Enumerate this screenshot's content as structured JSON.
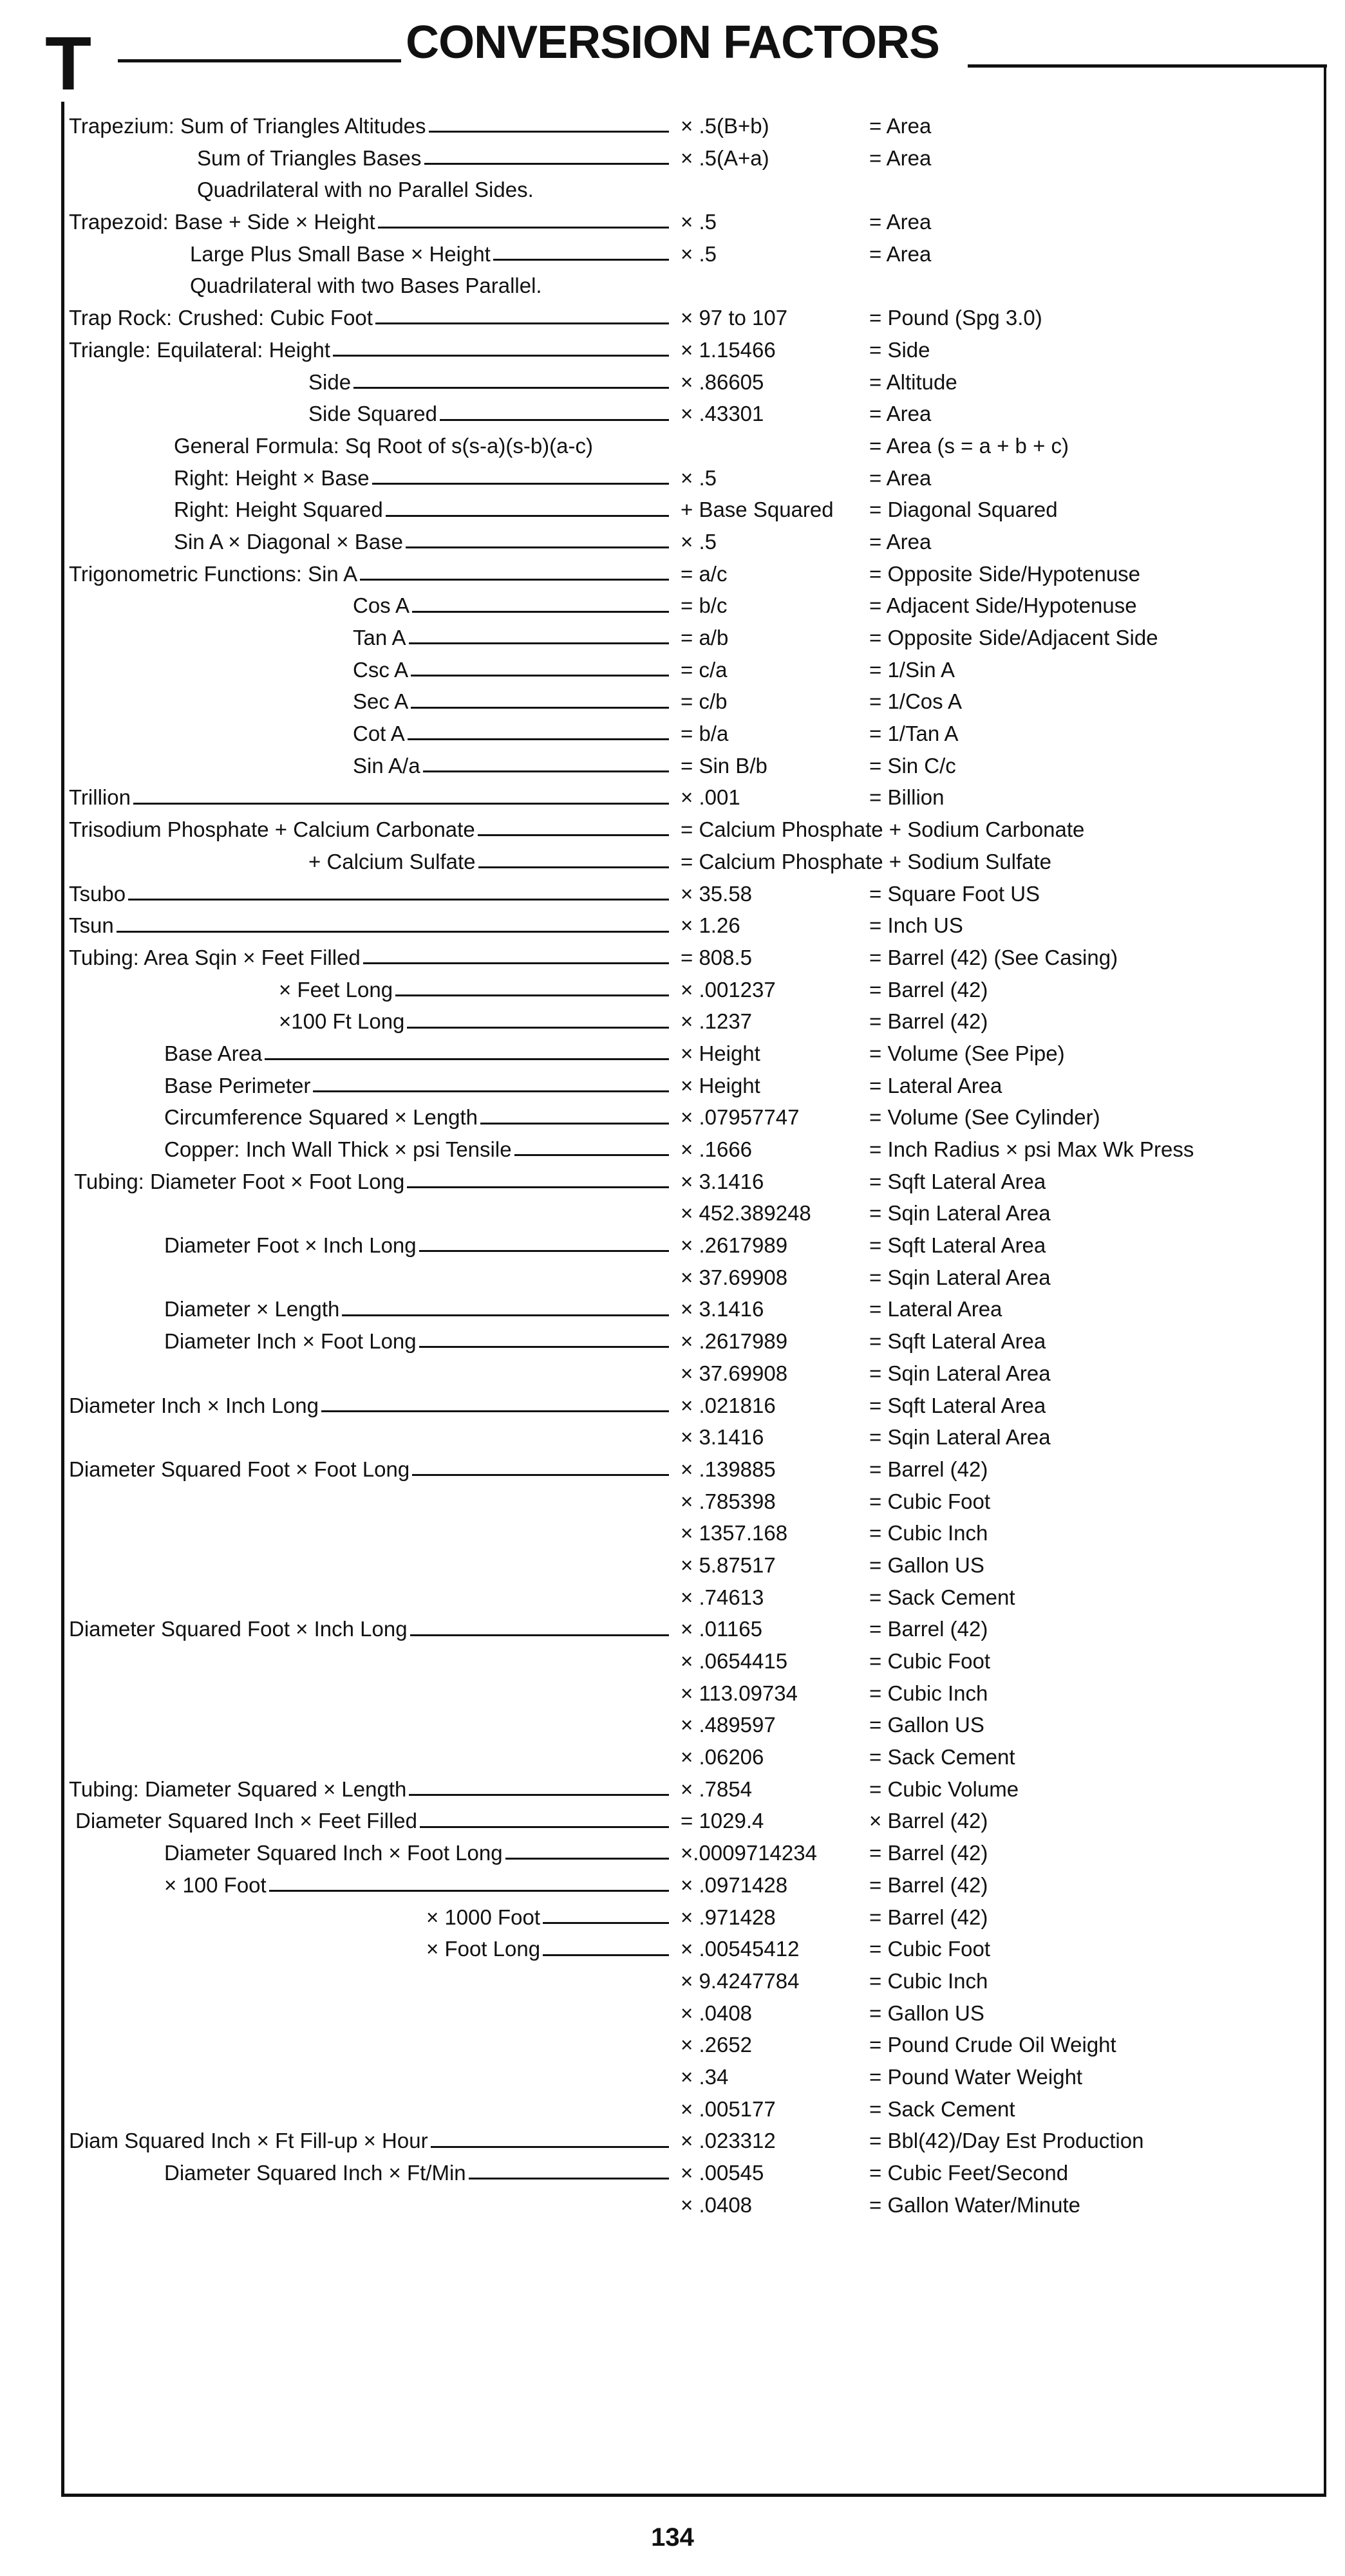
{
  "header": {
    "section_letter": "T",
    "title": "CONVERSION FACTORS"
  },
  "rows": [
    {
      "label": "Trapezium: Sum of Triangles Altitudes",
      "factor": "× .5(B+b)",
      "result": "= Area"
    },
    {
      "label": "Sum of Triangles Bases",
      "factor": "× .5(A+a)",
      "result": "= Area"
    },
    {
      "label": "Quadrilateral with no Parallel Sides.",
      "factor": "",
      "result": ""
    },
    {
      "label": "Trapezoid: Base + Side × Height",
      "factor": "× .5",
      "result": "= Area"
    },
    {
      "label": "Large Plus Small Base × Height",
      "factor": "× .5",
      "result": "= Area"
    },
    {
      "label": "Quadrilateral with two Bases Parallel.",
      "factor": "",
      "result": ""
    },
    {
      "label": "Trap Rock: Crushed: Cubic Foot",
      "factor": "× 97 to 107",
      "result": "= Pound (Spg 3.0)"
    },
    {
      "label": "Triangle: Equilateral: Height",
      "factor": "× 1.15466",
      "result": "= Side"
    },
    {
      "label": "Side",
      "factor": "× .86605",
      "result": "= Altitude"
    },
    {
      "label": "Side Squared",
      "factor": "× .43301",
      "result": "= Area"
    },
    {
      "label": "General Formula: Sq Root of s(s-a)(s-b)(a-c)",
      "factor": "",
      "result": "= Area (s = a + b + c)"
    },
    {
      "label": "Right: Height × Base",
      "factor": "× .5",
      "result": "= Area"
    },
    {
      "label": "Right: Height Squared",
      "factor": "+ Base Squared",
      "result": "= Diagonal Squared"
    },
    {
      "label": "Sin A × Diagonal × Base",
      "factor": "× .5",
      "result": "= Area"
    },
    {
      "label": "Trigonometric Functions: Sin A",
      "factor": "= a/c",
      "result": "= Opposite Side/Hypotenuse"
    },
    {
      "label": "Cos A",
      "factor": "= b/c",
      "result": "= Adjacent Side/Hypotenuse"
    },
    {
      "label": "Tan A",
      "factor": "= a/b",
      "result": "= Opposite Side/Adjacent Side"
    },
    {
      "label": "Csc A",
      "factor": "= c/a",
      "result": "= 1/Sin A"
    },
    {
      "label": "Sec A",
      "factor": "= c/b",
      "result": "= 1/Cos A"
    },
    {
      "label": "Cot A",
      "factor": "= b/a",
      "result": "= 1/Tan A"
    },
    {
      "label": "Sin A/a",
      "factor": "= Sin B/b",
      "result": "= Sin C/c"
    },
    {
      "label": "Trillion",
      "factor": "× .001",
      "result": "= Billion"
    },
    {
      "label": "Trisodium Phosphate + Calcium Carbonate",
      "factor": "= Calcium Phosphate + Sodium Carbonate",
      "result": ""
    },
    {
      "label": "+ Calcium Sulfate",
      "factor": "= Calcium Phosphate + Sodium Sulfate",
      "result": ""
    },
    {
      "label": "Tsubo",
      "factor": "× 35.58",
      "result": "= Square Foot US"
    },
    {
      "label": "Tsun",
      "factor": "× 1.26",
      "result": "= Inch US"
    },
    {
      "label": "Tubing: Area Sqin × Feet Filled",
      "factor": "= 808.5",
      "result": "= Barrel (42) (See Casing)"
    },
    {
      "label": "× Feet Long",
      "factor": "× .001237",
      "result": "= Barrel (42)"
    },
    {
      "label": "×100 Ft Long",
      "factor": "× .1237",
      "result": "= Barrel (42)"
    },
    {
      "label": "Base Area",
      "factor": "× Height",
      "result": "= Volume (See Pipe)"
    },
    {
      "label": "Base Perimeter",
      "factor": "× Height",
      "result": "= Lateral Area"
    },
    {
      "label": "Circumference Squared × Length",
      "factor": "× .07957747",
      "result": "= Volume (See Cylinder)"
    },
    {
      "label": "Copper: Inch Wall Thick × psi Tensile",
      "factor": "× .1666",
      "result": "= Inch Radius × psi Max Wk Press"
    },
    {
      "label": "Tubing: Diameter Foot × Foot Long",
      "factor": "× 3.1416",
      "result": "= Sqft Lateral Area"
    },
    {
      "label": "",
      "factor": "× 452.389248",
      "result": "= Sqin Lateral Area"
    },
    {
      "label": "Diameter Foot × Inch Long",
      "factor": "× .2617989",
      "result": "= Sqft Lateral Area"
    },
    {
      "label": "",
      "factor": "× 37.69908",
      "result": "= Sqin Lateral Area"
    },
    {
      "label": "Diameter × Length",
      "factor": "× 3.1416",
      "result": "= Lateral Area"
    },
    {
      "label": "Diameter Inch × Foot Long",
      "factor": "× .2617989",
      "result": "= Sqft Lateral Area"
    },
    {
      "label": "",
      "factor": "× 37.69908",
      "result": "= Sqin Lateral Area"
    },
    {
      "label": "Diameter Inch × Inch Long",
      "factor": "× .021816",
      "result": "= Sqft Lateral Area"
    },
    {
      "label": "",
      "factor": "× 3.1416",
      "result": "= Sqin Lateral Area"
    },
    {
      "label": "Diameter Squared Foot × Foot Long",
      "factor": "× .139885",
      "result": "= Barrel (42)"
    },
    {
      "label": "",
      "factor": "× .785398",
      "result": "= Cubic Foot"
    },
    {
      "label": "",
      "factor": "× 1357.168",
      "result": "= Cubic Inch"
    },
    {
      "label": "",
      "factor": "× 5.87517",
      "result": "= Gallon US"
    },
    {
      "label": "",
      "factor": "× .74613",
      "result": "= Sack Cement"
    },
    {
      "label": "Diameter Squared Foot × Inch Long",
      "factor": "× .01165",
      "result": "= Barrel (42)"
    },
    {
      "label": "",
      "factor": "× .0654415",
      "result": "= Cubic Foot"
    },
    {
      "label": "",
      "factor": "× 113.09734",
      "result": "= Cubic Inch"
    },
    {
      "label": "",
      "factor": "× .489597",
      "result": "= Gallon US"
    },
    {
      "label": "",
      "factor": "× .06206",
      "result": "= Sack Cement"
    },
    {
      "label": "Tubing: Diameter Squared × Length",
      "factor": "× .7854",
      "result": "= Cubic Volume"
    },
    {
      "label": "Diameter Squared Inch × Feet Filled",
      "factor": "= 1029.4",
      "result": "× Barrel (42)"
    },
    {
      "label": "Diameter Squared Inch × Foot Long",
      "factor": "×.0009714234",
      "result": "= Barrel (42)"
    },
    {
      "label": "× 100 Foot",
      "factor": "× .0971428",
      "result": "= Barrel (42)"
    },
    {
      "label": "× 1000 Foot",
      "factor": "× .971428",
      "result": "= Barrel (42)"
    },
    {
      "label": "× Foot Long",
      "factor": "× .00545412",
      "result": "= Cubic Foot"
    },
    {
      "label": "",
      "factor": "× 9.4247784",
      "result": "= Cubic Inch"
    },
    {
      "label": "",
      "factor": "× .0408",
      "result": "= Gallon US"
    },
    {
      "label": "",
      "factor": "× .2652",
      "result": "= Pound Crude Oil Weight"
    },
    {
      "label": "",
      "factor": "× .34",
      "result": "= Pound Water Weight"
    },
    {
      "label": "",
      "factor": "× .005177",
      "result": "= Sack Cement"
    },
    {
      "label": "Diam Squared Inch × Ft Fill-up × Hour",
      "factor": "× .023312",
      "result": "= Bbl(42)/Day Est Production"
    },
    {
      "label": "Diameter Squared Inch × Ft/Min",
      "factor": "× .00545",
      "result": "= Cubic Feet/Second"
    },
    {
      "label": "",
      "factor": "× .0408",
      "result": "= Gallon Water/Minute"
    }
  ],
  "footer": {
    "page_number": "134"
  }
}
